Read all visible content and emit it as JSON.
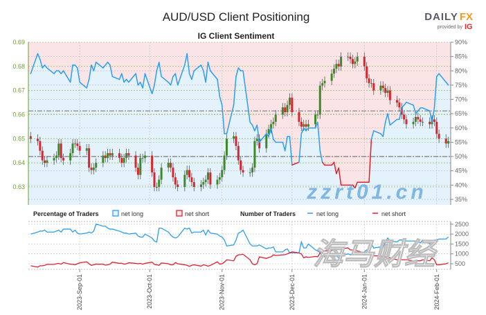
{
  "title": "AUD/USD Client Positioning",
  "subtitle": "IG Client Sentiment",
  "logo": {
    "brand_left": "DAILY",
    "brand_right": "FX",
    "provided_by": "provided by",
    "provider": "IG"
  },
  "watermark": {
    "cn": "海马财经",
    "url": "zzrt01.cn"
  },
  "legend": {
    "pct_title": "Percentage of Traders",
    "pct_long": "net long",
    "pct_short": "net short",
    "num_title": "Number of Traders",
    "num_long": "net long",
    "num_short": "net short"
  },
  "colors": {
    "long": "#2b9ef0",
    "short": "#e01f2d",
    "long_fill": "#e4f2fc",
    "short_fill": "#fbe4e5",
    "up": "#3c8a27",
    "down": "#d9262e",
    "price_axis": "#6d9e2e"
  },
  "chart_data": [
    {
      "type": "candlestick+line",
      "title": "IG Client Sentiment",
      "price_ticks": [
        "0.63",
        "0.64",
        "0.65",
        "0.66",
        "0.67",
        "0.68",
        "0.69"
      ],
      "pct_ticks": [
        "35%",
        "40%",
        "45%",
        "50%",
        "55%",
        "60%",
        "65%",
        "70%",
        "75%",
        "80%",
        "85%",
        "90%"
      ],
      "ylim_price": [
        0.6225,
        0.69
      ],
      "ylim_pct": [
        35,
        90
      ],
      "reference_lines": {
        "price": 0.6615,
        "pct": 50
      },
      "grid": true,
      "columns": [
        "date",
        "close",
        "net_long_pct",
        "net_long_traders",
        "net_short_traders"
      ],
      "rows": [
        [
          "2023-08-11",
          0.65,
          79,
          2000,
          400
        ],
        [
          "2023-08-14",
          0.649,
          86,
          2100,
          330
        ],
        [
          "2023-08-15",
          0.645,
          84,
          2150,
          400
        ],
        [
          "2023-08-16",
          0.641,
          81,
          2150,
          400
        ],
        [
          "2023-08-17",
          0.64,
          82,
          2200,
          420
        ],
        [
          "2023-08-18",
          0.641,
          81,
          2100,
          470
        ],
        [
          "2023-08-21",
          0.642,
          79,
          2100,
          470
        ],
        [
          "2023-08-22",
          0.643,
          80,
          2150,
          500
        ],
        [
          "2023-08-23",
          0.648,
          80,
          2200,
          520
        ],
        [
          "2023-08-24",
          0.642,
          79,
          2100,
          480
        ],
        [
          "2023-08-25",
          0.641,
          80,
          2250,
          560
        ],
        [
          "2023-08-28",
          0.644,
          76,
          2250,
          480
        ],
        [
          "2023-08-29",
          0.648,
          82,
          2100,
          470
        ],
        [
          "2023-08-30",
          0.648,
          82,
          2200,
          450
        ],
        [
          "2023-08-31",
          0.647,
          81,
          2050,
          500
        ],
        [
          "2023-09-01",
          0.645,
          76,
          2000,
          550
        ],
        [
          "2023-09-04",
          0.646,
          74,
          2050,
          600
        ],
        [
          "2023-09-05",
          0.638,
          77,
          2100,
          500
        ],
        [
          "2023-09-06",
          0.637,
          82,
          2050,
          420
        ],
        [
          "2023-09-07",
          0.638,
          80,
          2150,
          450
        ],
        [
          "2023-09-08",
          0.64,
          83,
          2500,
          480
        ],
        [
          "2023-09-11",
          0.643,
          81,
          2400,
          480
        ],
        [
          "2023-09-12",
          0.642,
          82,
          2400,
          430
        ],
        [
          "2023-09-13",
          0.644,
          83,
          2300,
          450
        ],
        [
          "2023-09-14",
          0.643,
          82,
          2250,
          480
        ],
        [
          "2023-09-15",
          0.644,
          78,
          2250,
          580
        ],
        [
          "2023-09-18",
          0.642,
          77,
          2150,
          520
        ],
        [
          "2023-09-19",
          0.64,
          79,
          2100,
          530
        ],
        [
          "2023-09-20",
          0.642,
          76,
          2050,
          480
        ],
        [
          "2023-09-21",
          0.644,
          77,
          2050,
          500
        ],
        [
          "2023-09-22",
          0.643,
          76,
          2000,
          550
        ],
        [
          "2023-09-25",
          0.638,
          79,
          2050,
          520
        ],
        [
          "2023-09-26",
          0.635,
          75,
          1900,
          500
        ],
        [
          "2023-09-27",
          0.642,
          76,
          1850,
          520
        ],
        [
          "2023-09-28",
          0.642,
          74,
          1850,
          480
        ],
        [
          "2023-09-29",
          0.643,
          79,
          2000,
          520
        ],
        [
          "2023-10-02",
          0.636,
          72,
          1800,
          580
        ],
        [
          "2023-10-03",
          0.63,
          75,
          1650,
          470
        ],
        [
          "2023-10-04",
          0.63,
          80,
          1600,
          450
        ],
        [
          "2023-10-05",
          0.633,
          83,
          2300,
          420
        ],
        [
          "2023-10-06",
          0.638,
          78,
          2300,
          540
        ],
        [
          "2023-10-09",
          0.64,
          76,
          2100,
          500
        ],
        [
          "2023-10-10",
          0.638,
          75,
          1950,
          450
        ],
        [
          "2023-10-11",
          0.634,
          78,
          1850,
          450
        ],
        [
          "2023-10-12",
          0.631,
          79,
          1800,
          560
        ],
        [
          "2023-10-13",
          0.63,
          75,
          1850,
          500
        ],
        [
          "2023-10-16",
          0.635,
          82,
          2300,
          450
        ],
        [
          "2023-10-17",
          0.637,
          86,
          2250,
          420
        ],
        [
          "2023-10-18",
          0.634,
          79,
          2300,
          370
        ],
        [
          "2023-10-19",
          0.632,
          77,
          2050,
          420
        ],
        [
          "2023-10-20",
          0.63,
          80,
          2100,
          450
        ],
        [
          "2023-10-23",
          0.631,
          82,
          2100,
          380
        ],
        [
          "2023-10-24",
          0.632,
          80,
          2200,
          450
        ],
        [
          "2023-10-25",
          0.633,
          76,
          1950,
          420
        ],
        [
          "2023-10-26",
          0.636,
          83,
          2200,
          380
        ],
        [
          "2023-10-27",
          0.631,
          80,
          2050,
          420
        ],
        [
          "2023-10-30",
          0.633,
          77,
          2000,
          600
        ],
        [
          "2023-10-31",
          0.634,
          71,
          1900,
          480
        ],
        [
          "2023-11-01",
          0.637,
          68,
          1850,
          500
        ],
        [
          "2023-11-02",
          0.643,
          58,
          1700,
          580
        ],
        [
          "2023-11-03",
          0.65,
          58,
          1400,
          700
        ],
        [
          "2023-11-06",
          0.651,
          68,
          1450,
          650
        ],
        [
          "2023-11-07",
          0.647,
          78,
          1700,
          880
        ],
        [
          "2023-11-08",
          0.641,
          81,
          2050,
          950
        ],
        [
          "2023-11-09",
          0.637,
          80,
          2100,
          960
        ],
        [
          "2023-11-10",
          0.636,
          80,
          2200,
          980
        ],
        [
          "2023-11-13",
          0.636,
          62,
          1500,
          700
        ],
        [
          "2023-11-14",
          0.638,
          61,
          1400,
          500
        ],
        [
          "2023-11-15",
          0.649,
          59,
          1400,
          450
        ],
        [
          "2023-11-16",
          0.65,
          61,
          1400,
          500
        ],
        [
          "2023-11-17",
          0.646,
          55,
          1450,
          850
        ],
        [
          "2023-11-20",
          0.652,
          58,
          1250,
          770
        ],
        [
          "2023-11-21",
          0.654,
          57,
          1300,
          820
        ],
        [
          "2023-11-22",
          0.656,
          60,
          1300,
          850
        ],
        [
          "2023-11-23",
          0.657,
          56,
          1350,
          950
        ],
        [
          "2023-11-24",
          0.66,
          55,
          1100,
          920
        ],
        [
          "2023-11-27",
          0.663,
          55,
          1100,
          950
        ],
        [
          "2023-11-28",
          0.661,
          52,
          1200,
          960
        ],
        [
          "2023-11-29",
          0.664,
          57,
          1250,
          1000
        ],
        [
          "2023-11-30",
          0.667,
          57,
          1050,
          1050
        ],
        [
          "2023-12-01",
          0.661,
          47,
          1050,
          1100
        ],
        [
          "2023-12-04",
          0.657,
          48,
          1050,
          1050
        ],
        [
          "2023-12-05",
          0.655,
          58,
          1600,
          1000
        ],
        [
          "2023-12-06",
          0.656,
          60,
          1300,
          800
        ],
        [
          "2023-12-07",
          0.655,
          59,
          1300,
          850
        ],
        [
          "2023-12-08",
          0.656,
          60,
          1500,
          820
        ],
        [
          "2023-12-11",
          0.66,
          60,
          1200,
          870
        ],
        [
          "2023-12-12",
          0.66,
          62,
          1150,
          850
        ],
        [
          "2023-12-13",
          0.672,
          52,
          1050,
          1050
        ],
        [
          "2023-12-14",
          0.673,
          48,
          900,
          1100
        ],
        [
          "2023-12-15",
          0.674,
          47,
          850,
          1150
        ],
        [
          "2023-12-18",
          0.677,
          47,
          900,
          1150
        ],
        [
          "2023-12-19",
          0.679,
          48,
          850,
          1300
        ],
        [
          "2023-12-20",
          0.681,
          44,
          900,
          1200
        ],
        [
          "2023-12-21",
          0.68,
          46,
          800,
          1250
        ],
        [
          "2023-12-22",
          0.684,
          40,
          900,
          1250
        ],
        [
          "2023-12-25",
          0.684,
          40,
          1000,
          1300
        ],
        [
          "2023-12-26",
          0.683,
          40,
          950,
          1200
        ],
        [
          "2023-12-27",
          0.681,
          40,
          1000,
          1200
        ],
        [
          "2023-12-28",
          0.682,
          39,
          1000,
          1150
        ],
        [
          "2023-12-29",
          0.684,
          41,
          1050,
          1150
        ],
        [
          "2024-01-01",
          0.68,
          41,
          1100,
          1050
        ],
        [
          "2024-01-02",
          0.675,
          41,
          1200,
          1000
        ],
        [
          "2024-01-03",
          0.673,
          41,
          1100,
          1000
        ],
        [
          "2024-01-04",
          0.673,
          56,
          1500,
          950
        ],
        [
          "2024-01-05",
          0.67,
          59,
          1300,
          900
        ],
        [
          "2024-01-08",
          0.672,
          58,
          1350,
          900
        ],
        [
          "2024-01-09",
          0.671,
          57,
          1300,
          850
        ],
        [
          "2024-01-10",
          0.669,
          62,
          1600,
          850
        ],
        [
          "2024-01-11",
          0.67,
          65,
          1800,
          800
        ],
        [
          "2024-01-12",
          0.666,
          61,
          1650,
          800
        ],
        [
          "2024-01-15",
          0.665,
          63,
          1600,
          700
        ],
        [
          "2024-01-16",
          0.663,
          63,
          1700,
          750
        ],
        [
          "2024-01-17",
          0.66,
          67,
          1700,
          700
        ],
        [
          "2024-01-18",
          0.658,
          68,
          1650,
          700
        ],
        [
          "2024-01-19",
          0.656,
          69,
          1650,
          700
        ],
        [
          "2024-01-22",
          0.657,
          68,
          1650,
          650
        ],
        [
          "2024-01-23",
          0.659,
          65,
          1650,
          650
        ],
        [
          "2024-01-24",
          0.658,
          66,
          1650,
          650
        ],
        [
          "2024-01-25",
          0.657,
          67,
          1550,
          650
        ],
        [
          "2024-01-26",
          0.657,
          67,
          1700,
          700
        ],
        [
          "2024-01-29",
          0.656,
          66,
          1500,
          650
        ],
        [
          "2024-01-30",
          0.658,
          62,
          1650,
          800
        ],
        [
          "2024-01-31",
          0.657,
          67,
          1700,
          700
        ],
        [
          "2024-02-01",
          0.652,
          78,
          1700,
          450
        ],
        [
          "2024-02-02",
          0.65,
          79,
          1750,
          450
        ],
        [
          "2024-02-05",
          0.648,
          76,
          1750,
          500
        ],
        [
          "2024-02-06",
          0.649,
          75,
          1850,
          550
        ]
      ]
    },
    {
      "type": "line",
      "title": "Number of Traders",
      "y_ticks": [
        "500",
        "1000",
        "1500",
        "2000",
        "2500"
      ],
      "ylim": [
        200,
        2650
      ],
      "x_ticks": [
        "2023-Sep-01",
        "2023-Oct-01",
        "2023-Nov-01",
        "2023-Dec-01",
        "2024-Jan-01",
        "2024-Feb-01"
      ],
      "x_tick_dates": [
        "2023-09-01",
        "2023-10-01",
        "2023-11-01",
        "2023-12-01",
        "2024-01-01",
        "2024-02-01"
      ],
      "xlim": [
        "2023-08-10",
        "2024-02-07"
      ]
    }
  ]
}
